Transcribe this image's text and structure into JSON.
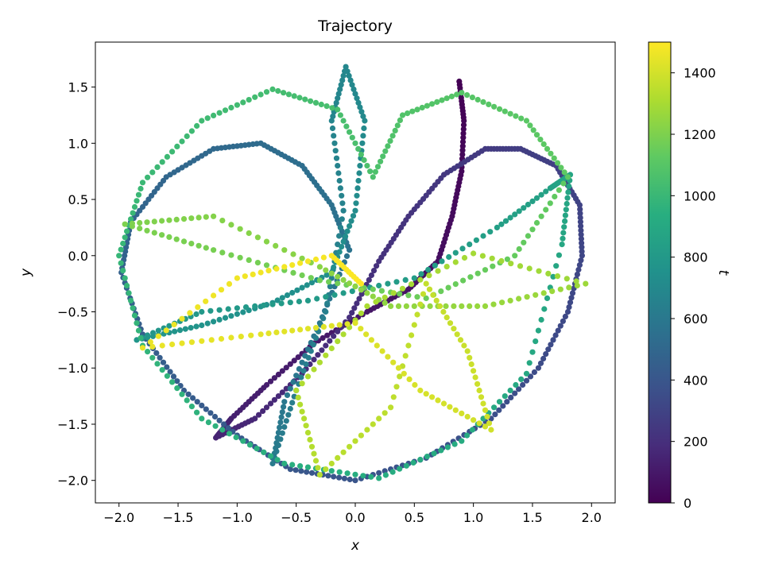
{
  "chart_data": {
    "type": "scatter",
    "title": "Trajectory",
    "xlabel": "x",
    "ylabel": "y",
    "xlim": [
      -2.2,
      2.2
    ],
    "ylim": [
      -2.2,
      1.9
    ],
    "xticks": [
      -2.0,
      -1.5,
      -1.0,
      -0.5,
      0.0,
      0.5,
      1.0,
      1.5,
      2.0
    ],
    "xtick_labels": [
      "−2.0",
      "−1.5",
      "−1.0",
      "−0.5",
      "0.0",
      "0.5",
      "1.0",
      "1.5",
      "2.0"
    ],
    "yticks": [
      -2.0,
      -1.5,
      -1.0,
      -0.5,
      0.0,
      0.5,
      1.0,
      1.5
    ],
    "ytick_labels": [
      "−2.0",
      "−1.5",
      "−1.0",
      "−0.5",
      "0.0",
      "0.5",
      "1.0",
      "1.5"
    ],
    "grid": false,
    "colorbar": {
      "label": "t",
      "colormap": "viridis",
      "range": [
        0,
        1500
      ],
      "ticks": [
        0,
        200,
        400,
        600,
        800,
        1000,
        1200,
        1400
      ],
      "tick_labels": [
        "0",
        "200",
        "400",
        "600",
        "800",
        "1000",
        "1200",
        "1400"
      ]
    },
    "series": [
      {
        "color_by": "t",
        "points": [
          {
            "t": 0,
            "x": 0.88,
            "y": 1.55
          },
          {
            "t": 15,
            "x": 0.92,
            "y": 1.2
          },
          {
            "t": 30,
            "x": 0.9,
            "y": 0.75
          },
          {
            "t": 45,
            "x": 0.82,
            "y": 0.35
          },
          {
            "t": 60,
            "x": 0.7,
            "y": -0.05
          },
          {
            "t": 75,
            "x": 0.45,
            "y": -0.3
          },
          {
            "t": 90,
            "x": 0.1,
            "y": -0.5
          },
          {
            "t": 105,
            "x": -0.35,
            "y": -0.78
          },
          {
            "t": 120,
            "x": -0.75,
            "y": -1.15
          },
          {
            "t": 135,
            "x": -1.05,
            "y": -1.45
          },
          {
            "t": 150,
            "x": -1.18,
            "y": -1.62
          },
          {
            "t": 165,
            "x": -0.85,
            "y": -1.45
          },
          {
            "t": 180,
            "x": -0.45,
            "y": -1.05
          },
          {
            "t": 195,
            "x": -0.05,
            "y": -0.55
          },
          {
            "t": 210,
            "x": 0.2,
            "y": -0.05
          },
          {
            "t": 225,
            "x": 0.45,
            "y": 0.35
          },
          {
            "t": 240,
            "x": 0.75,
            "y": 0.72
          },
          {
            "t": 255,
            "x": 1.1,
            "y": 0.95
          },
          {
            "t": 270,
            "x": 1.4,
            "y": 0.95
          },
          {
            "t": 285,
            "x": 1.7,
            "y": 0.8
          },
          {
            "t": 300,
            "x": 1.9,
            "y": 0.45
          },
          {
            "t": 315,
            "x": 1.92,
            "y": 0.0
          },
          {
            "t": 330,
            "x": 1.8,
            "y": -0.5
          },
          {
            "t": 345,
            "x": 1.55,
            "y": -1.0
          },
          {
            "t": 360,
            "x": 1.15,
            "y": -1.45
          },
          {
            "t": 375,
            "x": 0.6,
            "y": -1.8
          },
          {
            "t": 390,
            "x": 0.0,
            "y": -2.0
          },
          {
            "t": 405,
            "x": -0.55,
            "y": -1.9
          },
          {
            "t": 420,
            "x": -1.0,
            "y": -1.6
          },
          {
            "t": 435,
            "x": -1.45,
            "y": -1.2
          },
          {
            "t": 450,
            "x": -1.8,
            "y": -0.7
          },
          {
            "t": 465,
            "x": -1.98,
            "y": -0.15
          },
          {
            "t": 480,
            "x": -1.9,
            "y": 0.3
          },
          {
            "t": 495,
            "x": -1.6,
            "y": 0.7
          },
          {
            "t": 510,
            "x": -1.2,
            "y": 0.95
          },
          {
            "t": 525,
            "x": -0.8,
            "y": 1.0
          },
          {
            "t": 540,
            "x": -0.45,
            "y": 0.8
          },
          {
            "t": 555,
            "x": -0.2,
            "y": 0.45
          },
          {
            "t": 570,
            "x": -0.05,
            "y": 0.05
          },
          {
            "t": 585,
            "x": -0.3,
            "y": -0.6
          },
          {
            "t": 600,
            "x": -0.6,
            "y": -1.3
          },
          {
            "t": 615,
            "x": -0.7,
            "y": -1.85
          },
          {
            "t": 630,
            "x": -0.5,
            "y": -1.2
          },
          {
            "t": 645,
            "x": -0.25,
            "y": -0.5
          },
          {
            "t": 660,
            "x": -0.1,
            "y": 0.4
          },
          {
            "t": 675,
            "x": -0.2,
            "y": 1.2
          },
          {
            "t": 690,
            "x": -0.08,
            "y": 1.68
          },
          {
            "t": 705,
            "x": 0.08,
            "y": 1.2
          },
          {
            "t": 720,
            "x": 0.0,
            "y": 0.4
          },
          {
            "t": 735,
            "x": -0.2,
            "y": -0.15
          },
          {
            "t": 750,
            "x": -0.7,
            "y": -0.42
          },
          {
            "t": 765,
            "x": -1.3,
            "y": -0.62
          },
          {
            "t": 780,
            "x": -1.85,
            "y": -0.75
          },
          {
            "t": 795,
            "x": -1.3,
            "y": -0.5
          },
          {
            "t": 810,
            "x": -0.4,
            "y": -0.4
          },
          {
            "t": 825,
            "x": 0.5,
            "y": -0.2
          },
          {
            "t": 840,
            "x": 1.2,
            "y": 0.25
          },
          {
            "t": 855,
            "x": 1.65,
            "y": 0.6
          },
          {
            "t": 870,
            "x": 1.82,
            "y": 0.72
          },
          {
            "t": 885,
            "x": 1.75,
            "y": 0.1
          },
          {
            "t": 900,
            "x": 1.45,
            "y": -1.05
          },
          {
            "t": 915,
            "x": 0.9,
            "y": -1.65
          },
          {
            "t": 930,
            "x": 0.2,
            "y": -1.98
          },
          {
            "t": 945,
            "x": -0.6,
            "y": -1.85
          },
          {
            "t": 960,
            "x": -1.3,
            "y": -1.45
          },
          {
            "t": 975,
            "x": -1.8,
            "y": -0.8
          },
          {
            "t": 990,
            "x": -2.0,
            "y": 0.0
          },
          {
            "t": 1005,
            "x": -1.8,
            "y": 0.65
          },
          {
            "t": 1020,
            "x": -1.3,
            "y": 1.2
          },
          {
            "t": 1035,
            "x": -0.7,
            "y": 1.48
          },
          {
            "t": 1050,
            "x": -0.15,
            "y": 1.3
          },
          {
            "t": 1065,
            "x": 0.15,
            "y": 0.7
          },
          {
            "t": 1080,
            "x": 0.4,
            "y": 1.25
          },
          {
            "t": 1095,
            "x": 0.9,
            "y": 1.45
          },
          {
            "t": 1110,
            "x": 1.45,
            "y": 1.2
          },
          {
            "t": 1125,
            "x": 1.8,
            "y": 0.7
          },
          {
            "t": 1140,
            "x": 1.35,
            "y": 0.0
          },
          {
            "t": 1155,
            "x": 0.6,
            "y": -0.38
          },
          {
            "t": 1170,
            "x": -0.3,
            "y": -0.22
          },
          {
            "t": 1185,
            "x": -1.2,
            "y": 0.05
          },
          {
            "t": 1200,
            "x": -1.95,
            "y": 0.28
          },
          {
            "t": 1215,
            "x": -1.2,
            "y": 0.35
          },
          {
            "t": 1230,
            "x": -0.3,
            "y": -0.1
          },
          {
            "t": 1245,
            "x": 0.3,
            "y": -0.45
          },
          {
            "t": 1260,
            "x": 1.1,
            "y": -0.45
          },
          {
            "t": 1275,
            "x": 1.95,
            "y": -0.25
          },
          {
            "t": 1290,
            "x": 1.0,
            "y": 0.02
          },
          {
            "t": 1305,
            "x": 0.1,
            "y": -0.45
          },
          {
            "t": 1320,
            "x": -0.5,
            "y": -1.2
          },
          {
            "t": 1335,
            "x": -0.3,
            "y": -1.95
          },
          {
            "t": 1350,
            "x": 0.3,
            "y": -1.35
          },
          {
            "t": 1365,
            "x": 0.6,
            "y": -0.25
          },
          {
            "t": 1380,
            "x": 0.95,
            "y": -0.85
          },
          {
            "t": 1395,
            "x": 1.15,
            "y": -1.55
          },
          {
            "t": 1410,
            "x": 0.55,
            "y": -1.2
          },
          {
            "t": 1425,
            "x": 0.0,
            "y": -0.6
          },
          {
            "t": 1440,
            "x": -0.8,
            "y": -0.7
          },
          {
            "t": 1455,
            "x": -1.8,
            "y": -0.82
          },
          {
            "t": 1470,
            "x": -1.0,
            "y": -0.2
          },
          {
            "t": 1485,
            "x": -0.2,
            "y": 0.0
          },
          {
            "t": 1500,
            "x": 0.05,
            "y": -0.25
          }
        ]
      }
    ]
  }
}
